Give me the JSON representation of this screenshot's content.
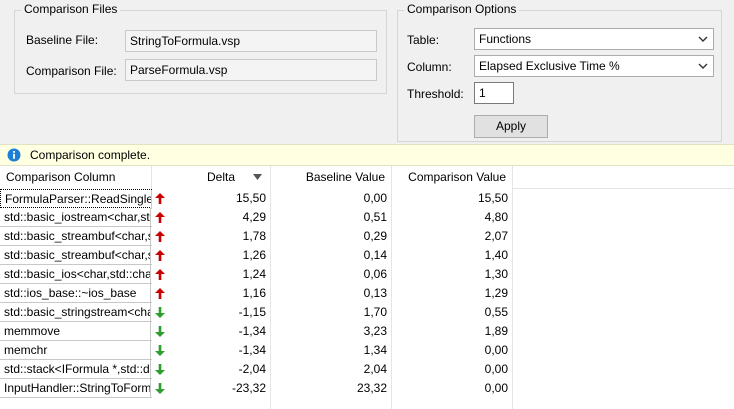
{
  "comparison_files": {
    "legend": "Comparison Files",
    "baseline_label": "Baseline File:",
    "baseline_value": "StringToFormula.vsp",
    "comparison_label": "Comparison File:",
    "comparison_value": "ParseFormula.vsp"
  },
  "comparison_options": {
    "legend": "Comparison Options",
    "table_label": "Table:",
    "table_value": "Functions",
    "column_label": "Column:",
    "column_value": "Elapsed Exclusive Time %",
    "threshold_label": "Threshold:",
    "threshold_value": "1",
    "apply_label": "Apply"
  },
  "info_bar": {
    "icon": "info-icon",
    "message": "Comparison complete."
  },
  "grid": {
    "columns": [
      "Comparison Column",
      "Delta",
      "Baseline Value",
      "Comparison Value"
    ],
    "sort_column": "Delta",
    "colors": {
      "up": "#cc0000",
      "down": "#2e9e2e"
    },
    "rows": [
      {
        "name": "FormulaParser::ReadSingleF",
        "trend": "up",
        "delta": "15,50",
        "baseline": "0,00",
        "comparison": "15,50"
      },
      {
        "name": "std::basic_iostream<char,std",
        "trend": "up",
        "delta": "4,29",
        "baseline": "0,51",
        "comparison": "4,80"
      },
      {
        "name": "std::basic_streambuf<char,s",
        "trend": "up",
        "delta": "1,78",
        "baseline": "0,29",
        "comparison": "2,07"
      },
      {
        "name": "std::basic_streambuf<char,s",
        "trend": "up",
        "delta": "1,26",
        "baseline": "0,14",
        "comparison": "1,40"
      },
      {
        "name": "std::basic_ios<char,std::char",
        "trend": "up",
        "delta": "1,24",
        "baseline": "0,06",
        "comparison": "1,30"
      },
      {
        "name": "std::ios_base::~ios_base",
        "trend": "up",
        "delta": "1,16",
        "baseline": "0,13",
        "comparison": "1,29"
      },
      {
        "name": "std::basic_stringstream<cha",
        "trend": "down",
        "delta": "-1,15",
        "baseline": "1,70",
        "comparison": "0,55"
      },
      {
        "name": "memmove",
        "trend": "down",
        "delta": "-1,34",
        "baseline": "3,23",
        "comparison": "1,89"
      },
      {
        "name": "memchr",
        "trend": "down",
        "delta": "-1,34",
        "baseline": "1,34",
        "comparison": "0,00"
      },
      {
        "name": "std::stack<IFormula *,std::de",
        "trend": "down",
        "delta": "-2,04",
        "baseline": "2,04",
        "comparison": "0,00"
      },
      {
        "name": "InputHandler::StringToForm",
        "trend": "down",
        "delta": "-23,32",
        "baseline": "23,32",
        "comparison": "0,00"
      }
    ]
  }
}
